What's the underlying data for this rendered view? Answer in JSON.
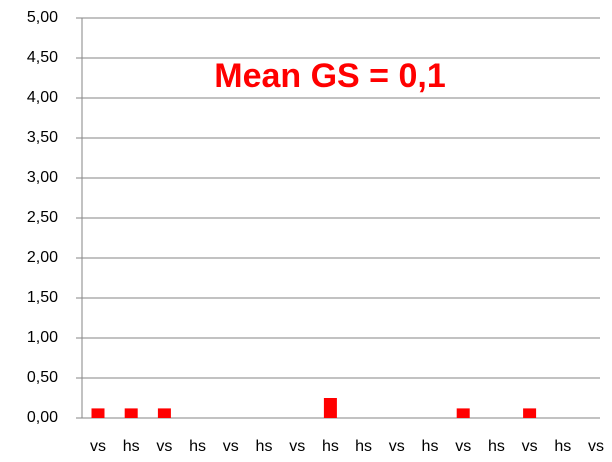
{
  "chart_data": {
    "type": "bar",
    "title": "Mean GS = 0,1",
    "categories": [
      "vs",
      "hs",
      "vs",
      "hs",
      "vs",
      "hs",
      "vs",
      "hs",
      "hs",
      "vs",
      "hs",
      "vs",
      "hs",
      "vs",
      "hs",
      "vs"
    ],
    "values": [
      0.12,
      0.12,
      0.12,
      0,
      0,
      0,
      0,
      0.25,
      0,
      0,
      0,
      0.12,
      0,
      0.12,
      0,
      0
    ],
    "color": "#ff0000",
    "ylim": [
      0,
      5
    ],
    "yticks": [
      {
        "value": 0,
        "label": "0,00"
      },
      {
        "value": 0.5,
        "label": "0,50"
      },
      {
        "value": 1,
        "label": "1,00"
      },
      {
        "value": 1.5,
        "label": "1,50"
      },
      {
        "value": 2,
        "label": "2,00"
      },
      {
        "value": 2.5,
        "label": "2,50"
      },
      {
        "value": 3,
        "label": "3,00"
      },
      {
        "value": 3.5,
        "label": "3,50"
      },
      {
        "value": 4,
        "label": "4,00"
      },
      {
        "value": 4.5,
        "label": "4,50"
      },
      {
        "value": 5,
        "label": "5,00"
      }
    ],
    "grid": true
  }
}
